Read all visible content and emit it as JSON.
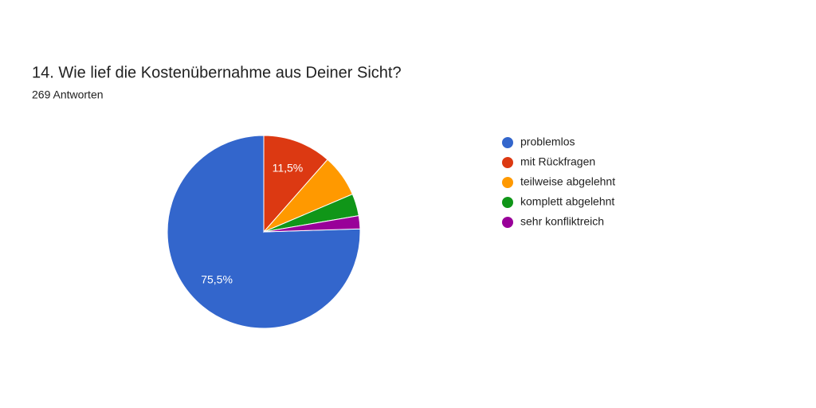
{
  "chart_data": {
    "type": "pie",
    "title": "14. Wie lief die Kostenübernahme aus Deiner Sicht?",
    "subtitle": "269 Antworten",
    "categories": [
      "problemlos",
      "mit Rückfragen",
      "teilweise abgelehnt",
      "komplett abgelehnt",
      "sehr konfliktreich"
    ],
    "values": [
      75.5,
      11.5,
      7.1,
      3.7,
      2.2
    ],
    "value_labels": [
      "75,5%",
      "11,5%",
      null,
      null,
      null
    ],
    "colors": [
      "#3366cc",
      "#dc3912",
      "#ff9900",
      "#109618",
      "#990099"
    ],
    "legend": "right"
  }
}
